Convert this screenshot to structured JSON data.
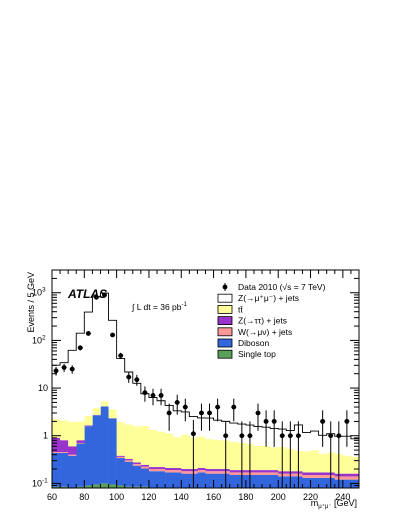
{
  "chart_data": {
    "type": "histogram",
    "experiment_label": "ATLAS",
    "luminosity_label": "∫ L dt = 36 pb",
    "luminosity_superscript": "-1",
    "xlabel": "m",
    "xlabel_subscript": "μ⁺μ⁻",
    "xlabel_unit": " [GeV]",
    "ylabel": "Events / 5 GeV",
    "xlim": [
      60,
      250
    ],
    "ylim": [
      0.08,
      3000
    ],
    "y_scale": "log",
    "grid": false,
    "legend_position": "top-right",
    "x_ticks": [
      60,
      80,
      100,
      120,
      140,
      160,
      180,
      200,
      220,
      240
    ],
    "y_ticks": [
      {
        "value": 0.1,
        "label": "10",
        "exp": "-1"
      },
      {
        "value": 1,
        "label": "1",
        "exp": ""
      },
      {
        "value": 10,
        "label": "10",
        "exp": ""
      },
      {
        "value": 100,
        "label": "10",
        "exp": "2"
      },
      {
        "value": 1000,
        "label": "10",
        "exp": "3"
      }
    ],
    "legend": [
      {
        "label": "Data 2010 (√s = 7 TeV)",
        "kind": "marker"
      },
      {
        "label": "Z(→μ⁺μ⁻) + jets",
        "kind": "box",
        "color": "#ffffff"
      },
      {
        "label": "tt̄",
        "kind": "box",
        "color": "#ffff99"
      },
      {
        "label": "Z(→ττ) + jets",
        "kind": "box",
        "color": "#9933cc"
      },
      {
        "label": "W(→μν) + jets",
        "kind": "box",
        "color": "#ff9999"
      },
      {
        "label": "Diboson",
        "kind": "box",
        "color": "#3366dd"
      },
      {
        "label": "Single top",
        "kind": "box",
        "color": "#5aa05a"
      }
    ],
    "bin_edges": [
      60,
      65,
      70,
      75,
      80,
      85,
      90,
      95,
      100,
      105,
      110,
      115,
      120,
      125,
      130,
      135,
      140,
      145,
      150,
      155,
      160,
      165,
      170,
      175,
      180,
      185,
      190,
      195,
      200,
      205,
      210,
      215,
      220,
      225,
      230,
      235,
      240,
      245,
      250
    ],
    "stack": [
      {
        "name": "Single top",
        "color": "#5aa05a",
        "values": [
          0.085,
          0.085,
          0.08,
          0.085,
          0.09,
          0.095,
          0.1,
          0.095,
          0.09,
          0.085,
          0.085,
          0.085,
          0.08,
          0.08,
          0.08,
          0.08,
          0.08,
          0.08,
          0.08,
          0.08,
          0.08,
          0.08,
          0.08,
          0.08,
          0.08,
          0.08,
          0.08,
          0.08,
          0.08,
          0.08,
          0.08,
          0.08,
          0.08,
          0.08,
          0.08,
          0.08,
          0.08,
          0.08
        ]
      },
      {
        "name": "Diboson",
        "color": "#3366dd",
        "values": [
          0.35,
          0.35,
          0.3,
          0.6,
          1.5,
          2.6,
          4.0,
          2.2,
          0.25,
          0.2,
          0.15,
          0.12,
          0.1,
          0.1,
          0.09,
          0.09,
          0.08,
          0.08,
          0.09,
          0.08,
          0.08,
          0.08,
          0.07,
          0.07,
          0.07,
          0.07,
          0.07,
          0.07,
          0.06,
          0.06,
          0.06,
          0.05,
          0.05,
          0.05,
          0.05,
          0.04,
          0.04,
          0.04
        ]
      },
      {
        "name": "W(→μν) + jets",
        "color": "#ff9999",
        "values": [
          0.02,
          0.02,
          0.02,
          0.02,
          0.02,
          0.02,
          0.02,
          0.02,
          0.02,
          0.02,
          0.02,
          0.02,
          0.02,
          0.02,
          0.02,
          0.02,
          0.02,
          0.02,
          0.02,
          0.02,
          0.02,
          0.02,
          0.02,
          0.02,
          0.02,
          0.02,
          0.02,
          0.02,
          0.02,
          0.02,
          0.02,
          0.02,
          0.02,
          0.02,
          0.02,
          0.02,
          0.02,
          0.02
        ]
      },
      {
        "name": "Z(→ττ) + jets",
        "color": "#9933cc",
        "values": [
          0.45,
          0.35,
          0.2,
          0.1,
          0.05,
          0.03,
          0.02,
          0.02,
          0.02,
          0.02,
          0.02,
          0.02,
          0.02,
          0.02,
          0.02,
          0.02,
          0.02,
          0.02,
          0.02,
          0.02,
          0.02,
          0.02,
          0.02,
          0.02,
          0.02,
          0.02,
          0.02,
          0.02,
          0.02,
          0.02,
          0.02,
          0.02,
          0.02,
          0.02,
          0.02,
          0.02,
          0.02,
          0.02
        ]
      },
      {
        "name": "tt̄",
        "color": "#ffff99",
        "values": [
          1.3,
          1.3,
          1.35,
          1.2,
          0.95,
          1.1,
          1.1,
          1.25,
          1.55,
          1.4,
          1.3,
          1.35,
          1.1,
          1.0,
          0.9,
          0.72,
          0.85,
          0.72,
          0.75,
          0.65,
          0.62,
          0.6,
          0.55,
          0.52,
          0.48,
          0.42,
          0.42,
          0.38,
          0.4,
          0.35,
          0.3,
          0.3,
          0.33,
          0.25,
          0.28,
          0.26,
          0.22,
          0.2
        ]
      },
      {
        "name": "Z(→μ⁺μ⁻) + jets",
        "color": "#ffffff",
        "values": [
          28,
          32,
          60,
          140,
          390,
          820,
          980,
          260,
          40,
          20,
          11,
          6,
          5,
          4.2,
          3.2,
          2.4,
          2.1,
          1.6,
          1.4,
          1.5,
          1.3,
          1.2,
          1.1,
          1.05,
          1.0,
          0.95,
          0.9,
          0.85,
          0.8,
          0.75,
          1.2,
          0.7,
          0.75,
          0.6,
          0.65,
          0.55,
          0.6,
          0.5
        ]
      }
    ],
    "data_points": [
      {
        "x": 62.5,
        "y": 23
      },
      {
        "x": 67.5,
        "y": 27
      },
      {
        "x": 72.5,
        "y": 25
      },
      {
        "x": 77.5,
        "y": 70
      },
      {
        "x": 82.5,
        "y": 140
      },
      {
        "x": 87.5,
        "y": 800
      },
      {
        "x": 92.5,
        "y": 900
      },
      {
        "x": 97.5,
        "y": 130
      },
      {
        "x": 102.5,
        "y": 48
      },
      {
        "x": 107.5,
        "y": 17
      },
      {
        "x": 112.5,
        "y": 15
      },
      {
        "x": 117.5,
        "y": 8
      },
      {
        "x": 122.5,
        "y": 7
      },
      {
        "x": 127.5,
        "y": 7
      },
      {
        "x": 132.5,
        "y": 3
      },
      {
        "x": 137.5,
        "y": 5
      },
      {
        "x": 142.5,
        "y": 4
      },
      {
        "x": 147.5,
        "y": 1.1
      },
      {
        "x": 152.5,
        "y": 3
      },
      {
        "x": 157.5,
        "y": 3
      },
      {
        "x": 162.5,
        "y": 4
      },
      {
        "x": 167.5,
        "y": 1
      },
      {
        "x": 172.5,
        "y": 4
      },
      {
        "x": 177.5,
        "y": 1
      },
      {
        "x": 182.5,
        "y": 1
      },
      {
        "x": 187.5,
        "y": 3
      },
      {
        "x": 192.5,
        "y": 2
      },
      {
        "x": 197.5,
        "y": 2
      },
      {
        "x": 202.5,
        "y": 1
      },
      {
        "x": 207.5,
        "y": 1
      },
      {
        "x": 212.5,
        "y": 1
      },
      {
        "x": 227.5,
        "y": 2
      },
      {
        "x": 232.5,
        "y": 1
      },
      {
        "x": 237.5,
        "y": 1
      },
      {
        "x": 242.5,
        "y": 2
      }
    ]
  }
}
